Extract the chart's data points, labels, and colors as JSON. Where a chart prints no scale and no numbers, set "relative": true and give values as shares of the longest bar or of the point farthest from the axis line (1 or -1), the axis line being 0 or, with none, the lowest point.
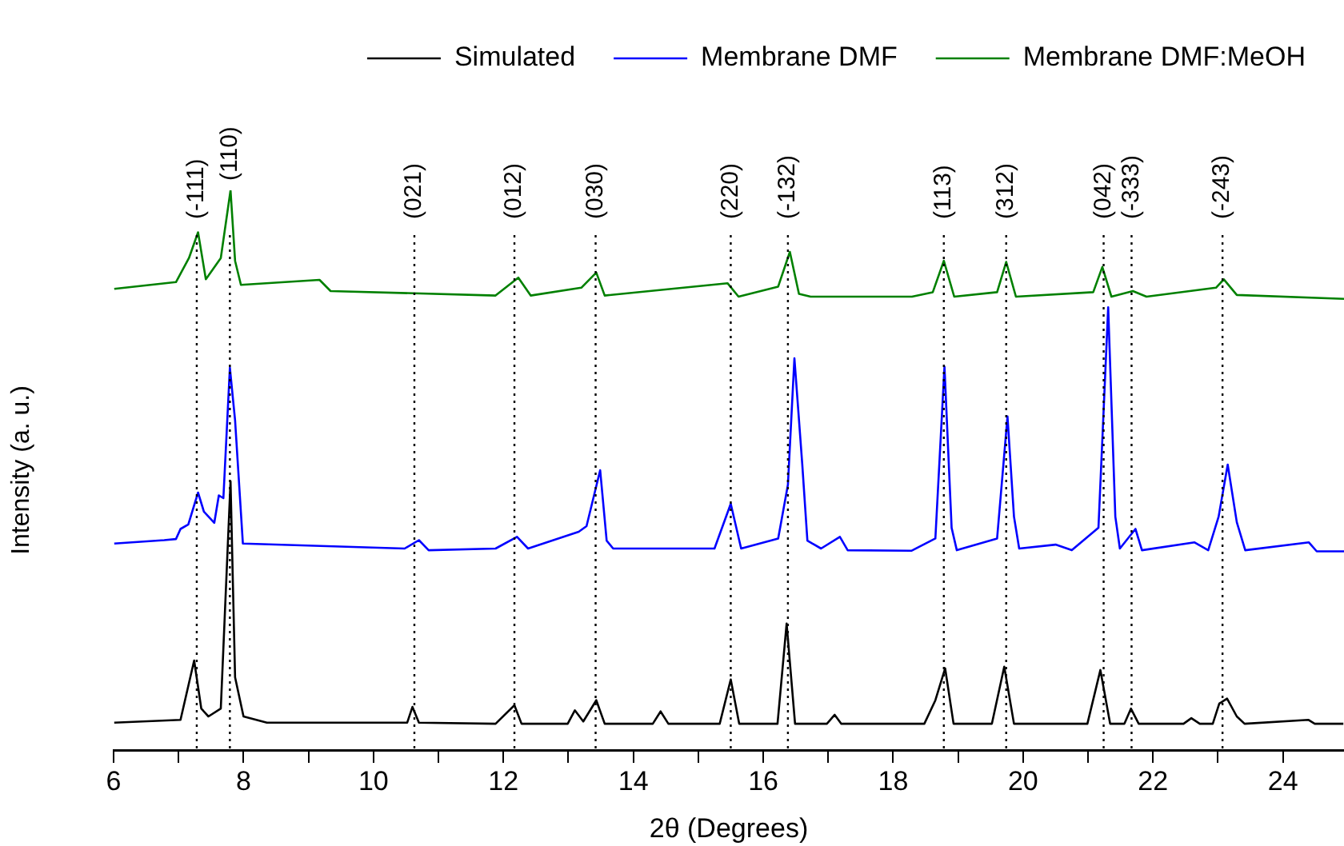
{
  "chart_data": {
    "type": "line",
    "xlabel": "2θ (Degrees)",
    "ylabel": "Intensity (a. u.)",
    "relative": true,
    "legend": "top",
    "marker": "none",
    "line_style": "solid",
    "xlim": [
      6,
      24.94
    ],
    "xticks": [
      6,
      {
        "value": 7,
        "label": null
      },
      8,
      {
        "value": 9,
        "label": null
      },
      10,
      {
        "value": 11,
        "label": null
      },
      12,
      {
        "value": 13,
        "label": null
      },
      14,
      {
        "value": 15,
        "label": null
      },
      16,
      {
        "value": 17,
        "label": null
      },
      18,
      {
        "value": 19,
        "label": null
      },
      20,
      {
        "value": 21,
        "label": null
      },
      22,
      {
        "value": 23,
        "label": null
      },
      24
    ],
    "series": [
      {
        "name": "Simulated",
        "color": "#000000",
        "x": [
          6.01,
          7.03,
          7.24,
          7.35,
          7.46,
          7.65,
          7.8,
          7.87,
          8.0,
          8.36,
          10.52,
          10.6,
          10.7,
          11.88,
          12.17,
          12.28,
          12.99,
          13.1,
          13.23,
          13.43,
          13.56,
          14.3,
          14.42,
          14.54,
          15.33,
          15.5,
          15.63,
          16.22,
          16.36,
          16.49,
          16.98,
          17.1,
          17.2,
          18.48,
          18.65,
          18.8,
          18.93,
          19.52,
          19.71,
          19.86,
          20.99,
          21.19,
          21.34,
          21.56,
          21.66,
          21.78,
          22.47,
          22.59,
          22.72,
          22.92,
          23.02,
          23.14,
          23.29,
          23.41,
          24.39,
          24.49,
          24.93
        ],
        "values": [
          0.049,
          0.054,
          0.16,
          0.074,
          0.06,
          0.074,
          0.48,
          0.13,
          0.06,
          0.049,
          0.049,
          0.077,
          0.049,
          0.047,
          0.08,
          0.047,
          0.047,
          0.071,
          0.051,
          0.089,
          0.047,
          0.047,
          0.069,
          0.047,
          0.047,
          0.126,
          0.047,
          0.047,
          0.226,
          0.047,
          0.047,
          0.063,
          0.047,
          0.047,
          0.089,
          0.146,
          0.047,
          0.047,
          0.149,
          0.047,
          0.047,
          0.143,
          0.047,
          0.047,
          0.074,
          0.047,
          0.047,
          0.057,
          0.047,
          0.047,
          0.083,
          0.092,
          0.06,
          0.047,
          0.054,
          0.047,
          0.047
        ]
      },
      {
        "name": "Membrane DMF",
        "color": "#0000ff",
        "x": [
          6.01,
          6.78,
          6.96,
          7.03,
          7.15,
          7.3,
          7.39,
          7.55,
          7.62,
          7.69,
          7.79,
          7.87,
          7.99,
          10.48,
          10.7,
          10.85,
          11.88,
          12.21,
          12.38,
          13.16,
          13.28,
          13.49,
          13.59,
          13.69,
          15.25,
          15.5,
          15.66,
          16.23,
          16.38,
          16.48,
          16.6,
          16.68,
          16.89,
          17.18,
          17.3,
          18.28,
          18.65,
          18.79,
          18.9,
          18.98,
          19.6,
          19.76,
          19.86,
          19.94,
          20.5,
          20.75,
          21.16,
          21.31,
          21.42,
          21.49,
          21.73,
          21.83,
          22.64,
          22.85,
          23.01,
          23.15,
          23.29,
          23.42,
          24.4,
          24.52,
          24.94
        ],
        "values": [
          0.369,
          0.375,
          0.377,
          0.395,
          0.403,
          0.46,
          0.426,
          0.406,
          0.455,
          0.45,
          0.683,
          0.589,
          0.369,
          0.36,
          0.375,
          0.357,
          0.36,
          0.381,
          0.36,
          0.39,
          0.4,
          0.5,
          0.374,
          0.36,
          0.36,
          0.44,
          0.36,
          0.378,
          0.474,
          0.7,
          0.512,
          0.374,
          0.36,
          0.381,
          0.357,
          0.356,
          0.378,
          0.685,
          0.397,
          0.357,
          0.378,
          0.596,
          0.417,
          0.36,
          0.367,
          0.357,
          0.397,
          0.791,
          0.417,
          0.36,
          0.395,
          0.357,
          0.371,
          0.357,
          0.417,
          0.51,
          0.407,
          0.357,
          0.371,
          0.355,
          0.355
        ]
      },
      {
        "name": "Membrane DMF:MeOH",
        "color": "#008000",
        "x": [
          6.01,
          6.96,
          7.16,
          7.3,
          7.42,
          7.65,
          7.8,
          7.87,
          7.96,
          9.17,
          9.34,
          11.88,
          12.23,
          12.42,
          13.2,
          13.43,
          13.56,
          15.45,
          15.62,
          16.23,
          16.41,
          16.55,
          16.73,
          18.29,
          18.61,
          18.78,
          18.94,
          19.6,
          19.74,
          19.89,
          21.08,
          21.22,
          21.36,
          21.69,
          21.9,
          22.97,
          23.09,
          23.29,
          24.94
        ],
        "values": [
          0.824,
          0.836,
          0.879,
          0.925,
          0.841,
          0.879,
          1.0,
          0.874,
          0.831,
          0.84,
          0.82,
          0.812,
          0.844,
          0.812,
          0.826,
          0.853,
          0.812,
          0.834,
          0.81,
          0.828,
          0.89,
          0.815,
          0.81,
          0.81,
          0.818,
          0.874,
          0.81,
          0.818,
          0.872,
          0.81,
          0.818,
          0.863,
          0.81,
          0.82,
          0.81,
          0.826,
          0.841,
          0.813,
          0.806
        ]
      }
    ],
    "ref_lines": [
      {
        "axis": "x",
        "value": 7.28,
        "line_style": "dotted"
      },
      {
        "axis": "x",
        "value": 7.79,
        "line_style": "dotted"
      },
      {
        "axis": "x",
        "value": 10.63,
        "line_style": "dotted"
      },
      {
        "axis": "x",
        "value": 12.17,
        "line_style": "dotted"
      },
      {
        "axis": "x",
        "value": 13.42,
        "line_style": "dotted"
      },
      {
        "axis": "x",
        "value": 15.5,
        "line_style": "dotted"
      },
      {
        "axis": "x",
        "value": 16.38,
        "line_style": "dotted"
      },
      {
        "axis": "x",
        "value": 18.78,
        "line_style": "dotted"
      },
      {
        "axis": "x",
        "value": 19.74,
        "line_style": "dotted"
      },
      {
        "axis": "x",
        "value": 21.24,
        "line_style": "dotted"
      },
      {
        "axis": "x",
        "value": 21.67,
        "line_style": "dotted"
      },
      {
        "axis": "x",
        "value": 23.07,
        "line_style": "dotted"
      }
    ],
    "annotations": [
      "(-111)",
      "(110)",
      "(021)",
      "(012)",
      "(030)",
      "(220)",
      "(-132)",
      "(113)",
      "(312)",
      "(042)",
      "(-333)",
      "(-243)"
    ]
  }
}
